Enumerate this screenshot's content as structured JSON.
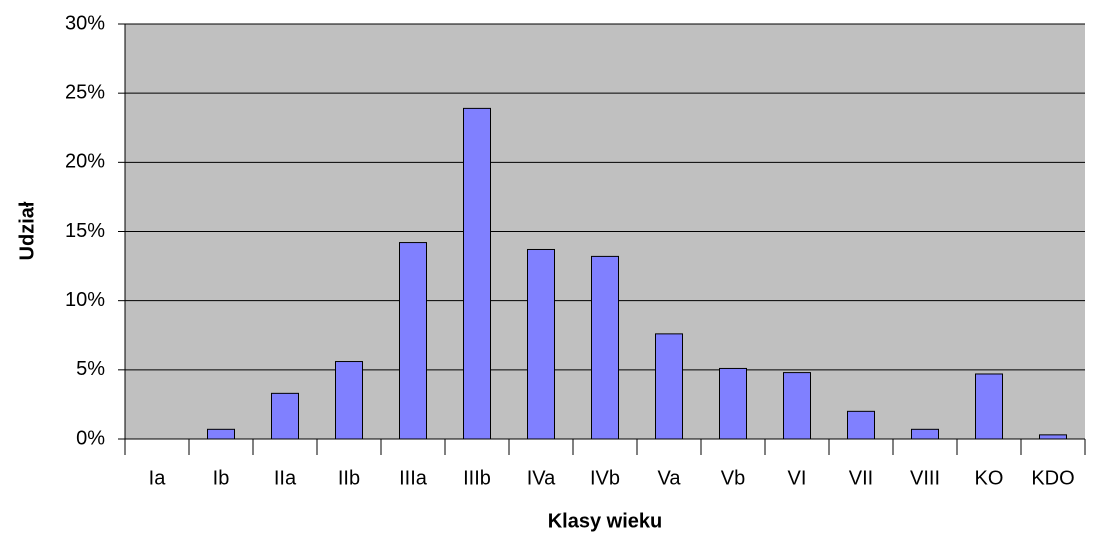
{
  "chart_data": {
    "type": "bar",
    "x_label": "Klasy wieku",
    "y_label": "Udział",
    "categories": [
      "Ia",
      "Ib",
      "IIa",
      "IIb",
      "IIIa",
      "IIIb",
      "IVa",
      "IVb",
      "Va",
      "Vb",
      "VI",
      "VII",
      "VIII",
      "KO",
      "KDO"
    ],
    "values": [
      0,
      0.7,
      3.3,
      5.6,
      14.2,
      23.9,
      13.7,
      13.2,
      7.6,
      5.1,
      4.8,
      2.0,
      0.7,
      4.7,
      0.3
    ],
    "color": "#8080ff",
    "ylim": [
      0,
      30
    ],
    "yticks": [
      {
        "value": 0,
        "label": "0%"
      },
      {
        "value": 5,
        "label": "5%"
      },
      {
        "value": 10,
        "label": "10%"
      },
      {
        "value": 15,
        "label": "15%"
      },
      {
        "value": 20,
        "label": "20%"
      },
      {
        "value": 25,
        "label": "25%"
      },
      {
        "value": 30,
        "label": "30%"
      }
    ],
    "grid": true
  }
}
